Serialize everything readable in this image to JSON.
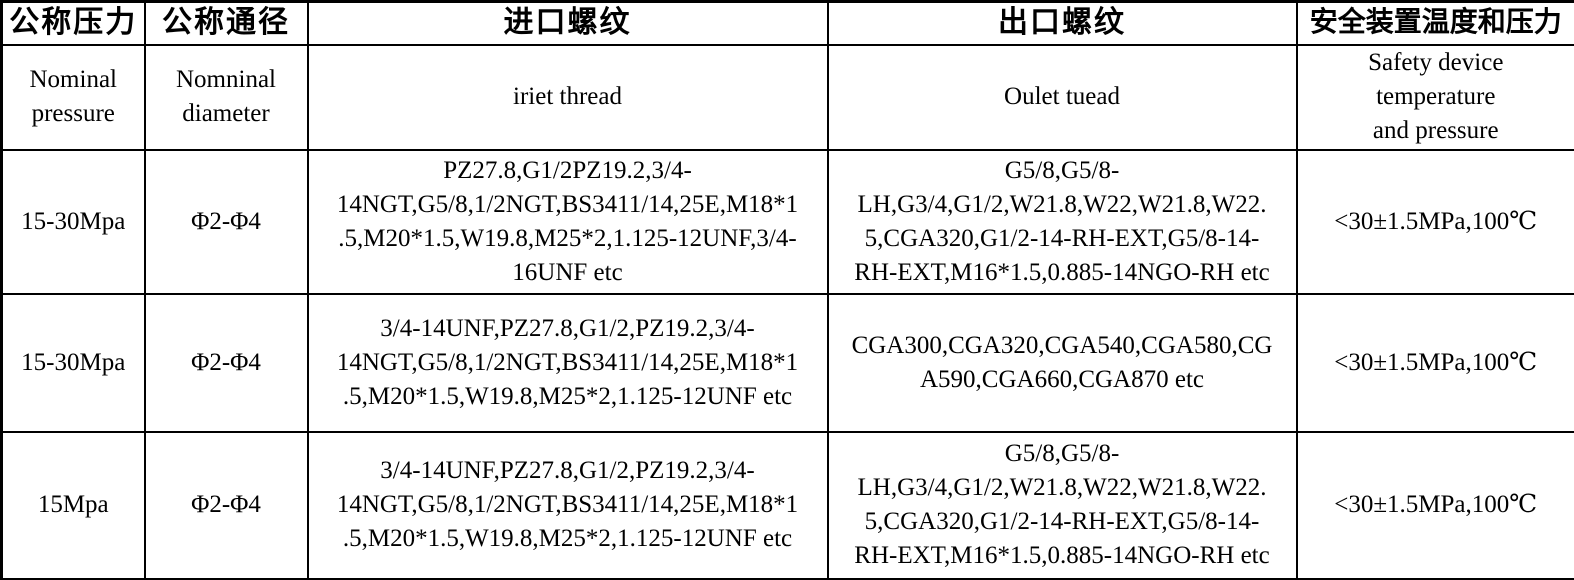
{
  "colors": {
    "text": "#000000",
    "border": "#000000",
    "background": "#ffffff"
  },
  "table": {
    "header": {
      "zh": [
        "公称压力",
        "公称通径",
        "进口螺纹",
        "出口螺纹",
        "安全装置温度和压力"
      ],
      "en": [
        "Nominal\npressure",
        "Nomninal\ndiameter",
        "iriet thread",
        "Oulet tuead",
        "Safety device\ntemperature\nand pressure"
      ]
    },
    "rows": [
      [
        "15-30Mpa",
        "Φ2-Φ4",
        "PZ27.8,G1/2PZ19.2,3/4-\n14NGT,G5/8,1/2NGT,BS3411/14,25E,M18*1\n.5,M20*1.5,W19.8,M25*2,1.125-12UNF,3/4-\n16UNF etc",
        "G5/8,G5/8-\nLH,G3/4,G1/2,W21.8,W22,W21.8,W22.\n5,CGA320,G1/2-14-RH-EXT,G5/8-14-\nRH-EXT,M16*1.5,0.885-14NGO-RH etc",
        "<30±1.5MPa,100℃"
      ],
      [
        "15-30Mpa",
        "Φ2-Φ4",
        "3/4-14UNF,PZ27.8,G1/2,PZ19.2,3/4-\n14NGT,G5/8,1/2NGT,BS3411/14,25E,M18*1\n.5,M20*1.5,W19.8,M25*2,1.125-12UNF etc",
        "CGA300,CGA320,CGA540,CGA580,CG\nA590,CGA660,CGA870 etc",
        "<30±1.5MPa,100℃"
      ],
      [
        "15Mpa",
        "Φ2-Φ4",
        "3/4-14UNF,PZ27.8,G1/2,PZ19.2,3/4-\n14NGT,G5/8,1/2NGT,BS3411/14,25E,M18*1\n.5,M20*1.5,W19.8,M25*2,1.125-12UNF etc",
        "G5/8,G5/8-\nLH,G3/4,G1/2,W21.8,W22,W21.8,W22.\n5,CGA320,G1/2-14-RH-EXT,G5/8-14-\nRH-EXT,M16*1.5,0.885-14NGO-RH etc",
        "<30±1.5MPa,100℃"
      ]
    ]
  }
}
